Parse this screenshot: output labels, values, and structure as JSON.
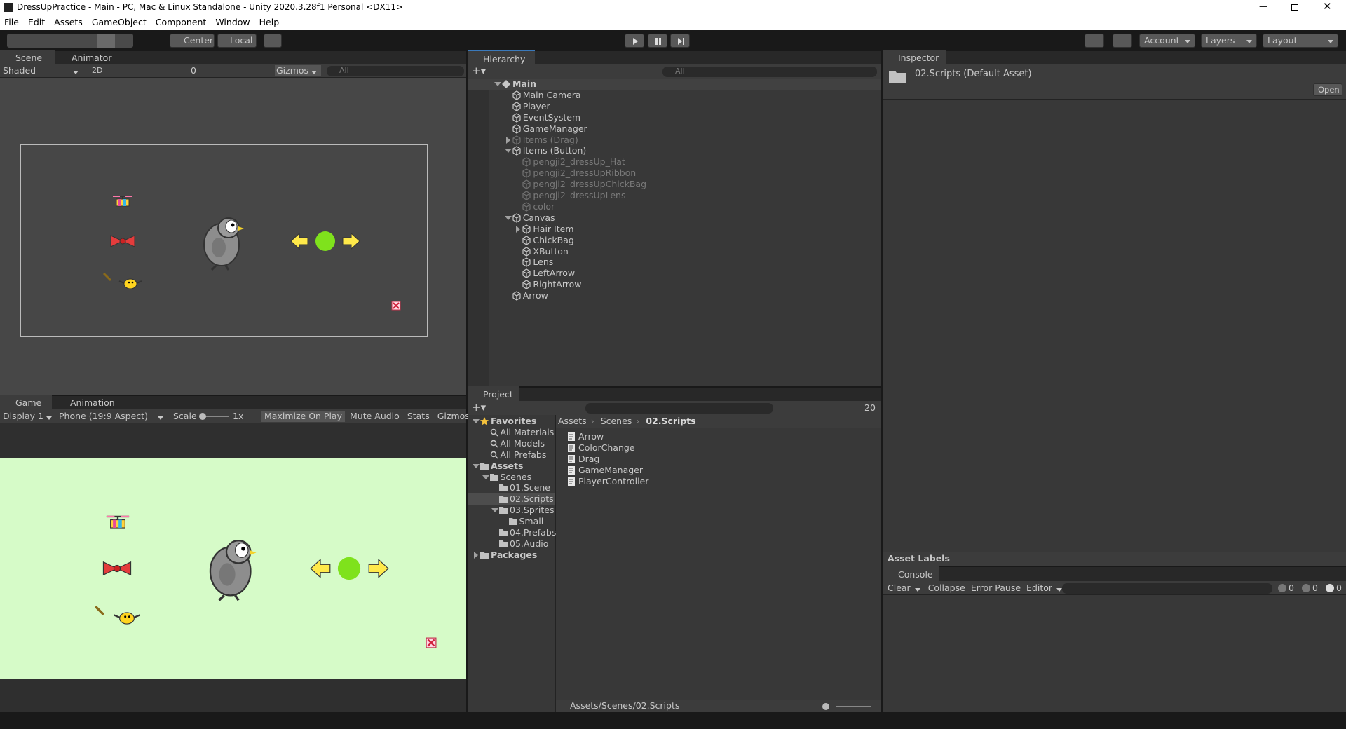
{
  "window_title": "DressUpPractice - Main - PC, Mac & Linux Standalone - Unity 2020.3.28f1 Personal <DX11>",
  "menu": [
    "File",
    "Edit",
    "Assets",
    "GameObject",
    "Component",
    "Window",
    "Help"
  ],
  "toolbar": {
    "pivot": "Center",
    "space": "Local",
    "account": "Account",
    "layers": "Layers",
    "layout": "Layout"
  },
  "scene": {
    "tabs": [
      "Scene",
      "Animator"
    ],
    "draw_mode": "Shaded",
    "mode_2d": "2D",
    "hidden_count": 0,
    "gizmos": "Gizmos",
    "search": "All"
  },
  "game": {
    "tabs": [
      "Game",
      "Animation"
    ],
    "display": "Display 1",
    "aspect": "Phone (19:9 Aspect)",
    "scale_label": "Scale",
    "scale_value": "1x",
    "buttons": [
      "Maximize On Play",
      "Mute Audio",
      "Stats",
      "Gizmos"
    ]
  },
  "hierarchy": {
    "tab": "Hierarchy",
    "search": "All",
    "tree": [
      {
        "label": "Main",
        "children": [
          {
            "label": "Main Camera"
          },
          {
            "label": "Player"
          },
          {
            "label": "EventSystem"
          },
          {
            "label": "GameManager"
          },
          {
            "label": "Items (Drag)",
            "expanded": false,
            "inactive": true
          },
          {
            "label": "Items (Button)",
            "children": [
              {
                "label": "pengji2_dressUp_Hat",
                "inactive": true
              },
              {
                "label": "pengji2_dressUpRibbon",
                "inactive": true
              },
              {
                "label": "pengji2_dressUpChickBag",
                "inactive": true
              },
              {
                "label": "pengji2_dressUpLens",
                "inactive": true
              },
              {
                "label": "color",
                "inactive": true
              }
            ]
          },
          {
            "label": "Canvas",
            "children": [
              {
                "label": "Hair Item",
                "expanded": false
              },
              {
                "label": "ChickBag"
              },
              {
                "label": "XButton"
              },
              {
                "label": "Lens"
              },
              {
                "label": "LeftArrow"
              },
              {
                "label": "RightArrow"
              }
            ]
          },
          {
            "label": "Arrow"
          }
        ]
      }
    ]
  },
  "project": {
    "tab": "Project",
    "hidden_count": 20,
    "tree": [
      {
        "label": "Favorites",
        "children": [
          {
            "label": "All Materials"
          },
          {
            "label": "All Models"
          },
          {
            "label": "All Prefabs"
          }
        ]
      },
      {
        "label": "Assets",
        "children": [
          {
            "label": "Scenes",
            "children": [
              {
                "label": "01.Scene"
              },
              {
                "label": "02.Scripts",
                "selected": true
              },
              {
                "label": "03.Sprites",
                "children": [
                  {
                    "label": "Small"
                  }
                ]
              },
              {
                "label": "04.Prefabs"
              },
              {
                "label": "05.Audio"
              }
            ]
          }
        ]
      },
      {
        "label": "Packages",
        "expanded": false
      }
    ],
    "breadcrumb": [
      "Assets",
      "Scenes",
      "02.Scripts"
    ],
    "files": [
      "Arrow",
      "ColorChange",
      "Drag",
      "GameManager",
      "PlayerController"
    ],
    "path": "Assets/Scenes/02.Scripts"
  },
  "inspector": {
    "tab": "Inspector",
    "asset": "02.Scripts (Default Asset)",
    "open": "Open",
    "labels": "Asset Labels"
  },
  "console": {
    "tab": "Console",
    "buttons": [
      "Clear",
      "Collapse",
      "Error Pause",
      "Editor"
    ],
    "counts": [
      0,
      0,
      0
    ]
  }
}
